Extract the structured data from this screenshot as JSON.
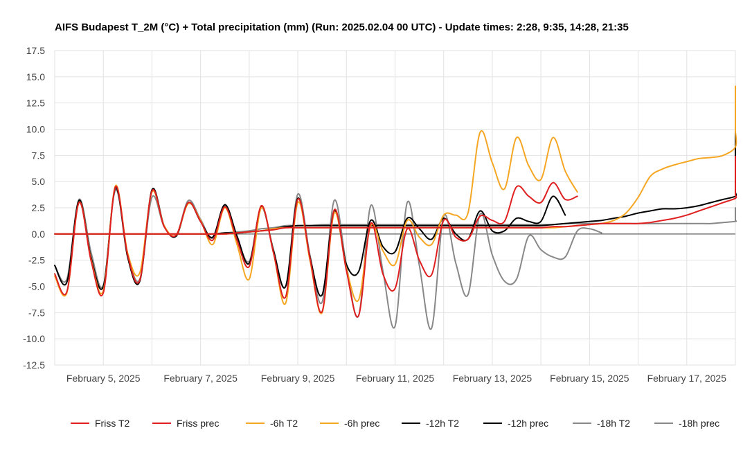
{
  "chart_data": {
    "type": "line",
    "title": "AIFS Budapest T_2M (°C) + Total precipitation (mm) (Run: 2025.02.04 00 UTC) - Update times: 2:28, 9:35, 14:28, 21:35",
    "x_range": [
      "2025-02-04T00:00",
      "2025-02-18T00:00"
    ],
    "x_step_hours": 6,
    "x_tick_labels": [
      "February 5, 2025",
      "February 7, 2025",
      "February 9, 2025",
      "February 11, 2025",
      "February 13, 2025",
      "February 15, 2025",
      "February 17, 2025"
    ],
    "x_tick_dates": [
      "2025-02-05",
      "2025-02-07",
      "2025-02-09",
      "2025-02-11",
      "2025-02-13",
      "2025-02-15",
      "2025-02-17"
    ],
    "ylim": [
      -12.5,
      17.5
    ],
    "y_ticks": [
      -12.5,
      -10.0,
      -7.5,
      -5.0,
      -2.5,
      0.0,
      2.5,
      5.0,
      7.5,
      10.0,
      12.5,
      15.0,
      17.5
    ],
    "y_tick_labels": [
      "-12.5",
      "-10.0",
      "-7.5",
      "-5.0",
      "-2.5",
      "0.0",
      "2.5",
      "5.0",
      "7.5",
      "10.0",
      "12.5",
      "15.0",
      "17.5"
    ],
    "grid": true,
    "legend_position": "bottom",
    "series": [
      {
        "name": "-18h prec",
        "color": "#888888",
        "values": [
          0.0,
          0.0,
          0.0,
          0.0,
          0.0,
          0.0,
          0.0,
          0.0,
          0.0,
          0.0,
          0.0,
          0.0,
          0.0,
          0.0,
          0.1,
          0.2,
          0.3,
          0.5,
          0.6,
          0.8,
          0.8,
          0.8,
          0.9,
          0.9,
          0.9,
          0.9,
          0.9,
          0.9,
          0.9,
          0.9,
          0.9,
          0.9,
          0.9,
          0.9,
          0.9,
          0.9,
          0.9,
          0.9,
          0.9,
          0.9,
          0.9,
          0.9,
          1.0,
          1.0,
          1.0,
          1.0,
          1.0,
          1.0,
          1.0,
          1.0,
          1.0,
          1.0,
          1.0,
          1.0,
          1.0,
          1.1,
          1.2,
          1.3,
          1.5,
          1.7,
          1.8,
          2.0,
          2.2,
          2.3,
          2.5
        ]
      },
      {
        "name": "-18h T2",
        "color": "#888888",
        "values": [
          -3.0,
          -4.3,
          3.3,
          -1.8,
          -4.9,
          4.2,
          -1.9,
          -4.3,
          3.5,
          0.7,
          -0.1,
          3.2,
          1.4,
          -0.4,
          2.7,
          -0.3,
          -2.6,
          2.5,
          -1.5,
          -5.0,
          3.8,
          -2.0,
          -6.5,
          3.2,
          -3.0,
          -7.8,
          2.7,
          -3.5,
          -8.8,
          3.0,
          -3.0,
          -9.0,
          1.7,
          -2.8,
          -5.8,
          1.9,
          -2.0,
          -4.5,
          -4.3,
          -0.2,
          -1.5,
          -2.2,
          -2.2,
          0.3,
          0.5,
          0.1
        ]
      },
      {
        "name": "-12h prec",
        "color": "#000000",
        "values": [
          0.0,
          0.0,
          0.0,
          0.0,
          0.0,
          0.0,
          0.0,
          0.0,
          0.0,
          0.0,
          0.0,
          0.0,
          0.0,
          0.0,
          0.1,
          0.1,
          0.2,
          0.3,
          0.5,
          0.7,
          0.8,
          0.8,
          0.8,
          0.8,
          0.8,
          0.8,
          0.8,
          0.8,
          0.8,
          0.8,
          0.8,
          0.8,
          0.8,
          0.8,
          0.8,
          0.8,
          0.8,
          0.8,
          0.8,
          0.8,
          0.8,
          0.9,
          1.0,
          1.1,
          1.2,
          1.3,
          1.5,
          1.7,
          2.0,
          2.2,
          2.4,
          2.4,
          2.5,
          2.7,
          3.0,
          3.3,
          3.6,
          4.0,
          4.7,
          6.5,
          9.0,
          10.0,
          10.1,
          10.1,
          10.1
        ]
      },
      {
        "name": "-12h T2",
        "color": "#000000",
        "values": [
          -3.0,
          -4.6,
          3.2,
          -2.3,
          -5.0,
          4.4,
          -2.2,
          -4.5,
          4.2,
          0.8,
          -0.2,
          3.0,
          1.2,
          -0.3,
          2.8,
          -0.2,
          -2.8,
          2.6,
          -1.6,
          -5.0,
          3.4,
          -2.2,
          -5.8,
          2.2,
          -2.9,
          -3.6,
          1.3,
          -1.2,
          -1.7,
          1.5,
          0.5,
          -0.5,
          1.5,
          0.0,
          -0.5,
          2.2,
          0.3,
          0.3,
          1.5,
          1.2,
          1.2,
          3.6,
          1.8
        ]
      },
      {
        "name": "-6h prec",
        "color": "#f5a623",
        "values": [
          0.0,
          0.0,
          0.0,
          0.0,
          0.0,
          0.0,
          0.0,
          0.0,
          0.0,
          0.0,
          0.0,
          0.0,
          0.0,
          0.0,
          0.0,
          0.1,
          0.2,
          0.3,
          0.5,
          0.6,
          0.6,
          0.6,
          0.6,
          0.6,
          0.6,
          0.6,
          0.6,
          0.6,
          0.6,
          0.6,
          0.6,
          0.6,
          0.6,
          0.6,
          0.6,
          0.6,
          0.6,
          0.6,
          0.6,
          0.6,
          0.6,
          0.6,
          0.7,
          0.8,
          0.9,
          1.0,
          1.3,
          2.0,
          3.5,
          5.5,
          6.2,
          6.6,
          6.9,
          7.2,
          7.3,
          7.5,
          8.3,
          9.8,
          10.0,
          10.4,
          11.5,
          13.0,
          13.7,
          14.1
        ]
      },
      {
        "name": "-6h T2",
        "color": "#f5a623",
        "values": [
          -4.0,
          -5.6,
          3.0,
          -2.5,
          -5.4,
          4.6,
          -1.8,
          -3.7,
          4.0,
          0.8,
          -0.1,
          2.9,
          1.3,
          -1.0,
          2.5,
          -1.0,
          -4.3,
          2.5,
          -1.8,
          -6.6,
          3.0,
          -2.5,
          -7.5,
          2.0,
          -3.3,
          -6.3,
          0.8,
          -1.6,
          -2.9,
          1.3,
          -0.3,
          -1.0,
          1.8,
          1.8,
          2.0,
          9.7,
          6.8,
          4.3,
          9.2,
          6.5,
          5.2,
          9.2,
          6.0,
          4.0
        ]
      },
      {
        "name": "Friss prec",
        "color": "#e02020",
        "values": [
          0.0,
          0.0,
          0.0,
          0.0,
          0.0,
          0.0,
          0.0,
          0.0,
          0.0,
          0.0,
          0.0,
          0.0,
          0.0,
          0.0,
          0.0,
          0.1,
          0.2,
          0.3,
          0.4,
          0.6,
          0.6,
          0.6,
          0.6,
          0.6,
          0.6,
          0.6,
          0.6,
          0.6,
          0.6,
          0.6,
          0.6,
          0.6,
          0.6,
          0.6,
          0.6,
          0.6,
          0.6,
          0.6,
          0.6,
          0.6,
          0.6,
          0.7,
          0.7,
          0.8,
          0.9,
          1.0,
          1.0,
          1.0,
          1.0,
          1.1,
          1.3,
          1.5,
          1.8,
          2.2,
          2.6,
          3.0,
          3.4,
          3.7,
          4.0,
          4.5,
          5.0,
          5.6,
          6.5,
          7.4
        ]
      },
      {
        "name": "Friss T2",
        "color": "#e02020",
        "values": [
          -3.8,
          -5.5,
          3.0,
          -2.6,
          -5.6,
          4.5,
          -2.0,
          -4.4,
          4.1,
          0.7,
          -0.1,
          3.0,
          1.2,
          -0.6,
          2.6,
          -0.6,
          -3.1,
          2.7,
          -1.8,
          -6.0,
          3.3,
          -2.3,
          -7.4,
          2.3,
          -3.5,
          -7.8,
          1.0,
          -3.8,
          -5.2,
          0.5,
          -2.5,
          -3.9,
          1.3,
          -0.3,
          -0.5,
          1.7,
          1.3,
          1.2,
          4.5,
          3.6,
          3.0,
          4.9,
          3.3,
          3.6
        ]
      }
    ],
    "legend": [
      {
        "name": "Friss T2",
        "color": "#e02020"
      },
      {
        "name": "Friss prec",
        "color": "#e02020"
      },
      {
        "name": "-6h T2",
        "color": "#f5a623"
      },
      {
        "name": "-6h prec",
        "color": "#f5a623"
      },
      {
        "name": "-12h T2",
        "color": "#000000"
      },
      {
        "name": "-12h prec",
        "color": "#000000"
      },
      {
        "name": "-18h T2",
        "color": "#888888"
      },
      {
        "name": "-18h prec",
        "color": "#888888"
      }
    ]
  }
}
